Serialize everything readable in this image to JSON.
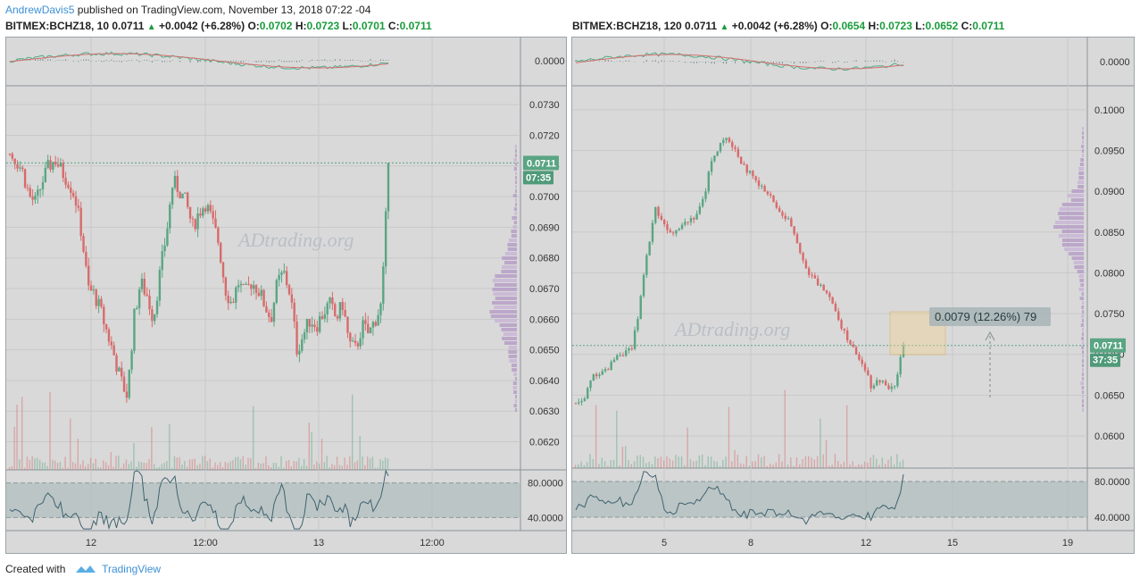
{
  "header": {
    "author": "AndrewDavis5",
    "published_text": " published on TradingView.com, November 13, 2018 07:22 -04"
  },
  "footer": {
    "created_with": "Created with",
    "brand": "TradingView"
  },
  "colors": {
    "up": "#5aa583",
    "down": "#d86b6b",
    "accent": "#1a9c3c",
    "panel_bg": "#d9d9d9",
    "last_price": "#5aa583"
  },
  "charts": [
    {
      "symbol_line": "BITMEX:BCHZ18, 10",
      "last": "0.0711",
      "change": "+0.0042 (+6.28%)",
      "o_label": "O:",
      "o": "0.0702",
      "h_label": "H:",
      "h": "0.0723",
      "l_label": "L:",
      "l": "0.0701",
      "c_label": "C:",
      "c": "0.0711",
      "watermark": "ADtrading.org",
      "macd_tick": "0.0000",
      "price_badge": "0.0711",
      "countdown": "07:35",
      "rsi_ticks": [
        "80.0000",
        "40.0000"
      ]
    },
    {
      "symbol_line": "BITMEX:BCHZ18, 120",
      "last": "0.0711",
      "change": "+0.0042 (+6.28%)",
      "o_label": "O:",
      "o": "0.0654",
      "h_label": "H:",
      "h": "0.0723",
      "l_label": "L:",
      "l": "0.0652",
      "c_label": "C:",
      "c": "0.0711",
      "watermark": "ADtrading.org",
      "macd_tick": "0.0000",
      "price_badge": "0.0711",
      "countdown": "37:35",
      "measure_label": "0.0079 (12.26%) 79",
      "rsi_ticks": [
        "80.0000",
        "40.0000"
      ]
    }
  ],
  "chart_data": [
    {
      "type": "candlestick",
      "symbol": "BITMEX:BCHZ18",
      "timeframe": "10",
      "y_ticks": [
        0.062,
        0.063,
        0.064,
        0.065,
        0.066,
        0.067,
        0.068,
        0.069,
        0.07,
        0.071,
        0.072,
        0.073
      ],
      "ylim": [
        0.0612,
        0.0735
      ],
      "x_tick_labels": [
        "12",
        "12:00",
        "13",
        "12:00"
      ],
      "approx_close_path": [
        0.0714,
        0.0712,
        0.0708,
        0.07,
        0.0698,
        0.0705,
        0.071,
        0.0712,
        0.0708,
        0.0705,
        0.07,
        0.0688,
        0.067,
        0.0668,
        0.0662,
        0.0655,
        0.0648,
        0.064,
        0.0635,
        0.066,
        0.0672,
        0.0668,
        0.066,
        0.0675,
        0.0688,
        0.0705,
        0.0702,
        0.0698,
        0.069,
        0.0695,
        0.0698,
        0.0692,
        0.0685,
        0.067,
        0.0665,
        0.0672,
        0.0668,
        0.0672,
        0.067,
        0.0665,
        0.066,
        0.0672,
        0.0675,
        0.0668,
        0.065,
        0.0655,
        0.066,
        0.0658,
        0.0662,
        0.0665,
        0.066,
        0.0665,
        0.0652,
        0.065,
        0.0658,
        0.0655,
        0.066,
        0.0665,
        0.071
      ],
      "last_price": 0.0711
    },
    {
      "type": "candlestick",
      "symbol": "BITMEX:BCHZ18",
      "timeframe": "120",
      "y_ticks": [
        0.06,
        0.065,
        0.07,
        0.075,
        0.08,
        0.085,
        0.09,
        0.095,
        0.1
      ],
      "ylim": [
        0.0565,
        0.1025
      ],
      "x_tick_labels": [
        "5",
        "8",
        "12",
        "15",
        "19"
      ],
      "approx_close_path": [
        0.064,
        0.0642,
        0.0675,
        0.0678,
        0.068,
        0.07,
        0.0702,
        0.0705,
        0.076,
        0.083,
        0.088,
        0.086,
        0.085,
        0.0858,
        0.0865,
        0.087,
        0.089,
        0.094,
        0.0955,
        0.0965,
        0.095,
        0.093,
        0.092,
        0.0905,
        0.09,
        0.088,
        0.087,
        0.086,
        0.083,
        0.08,
        0.079,
        0.078,
        0.077,
        0.074,
        0.072,
        0.07,
        0.069,
        0.066,
        0.067,
        0.066,
        0.0665,
        0.0711
      ],
      "last_price": 0.0711,
      "measurement": {
        "change": 0.0079,
        "percent": 12.26,
        "bars": 79
      }
    }
  ]
}
